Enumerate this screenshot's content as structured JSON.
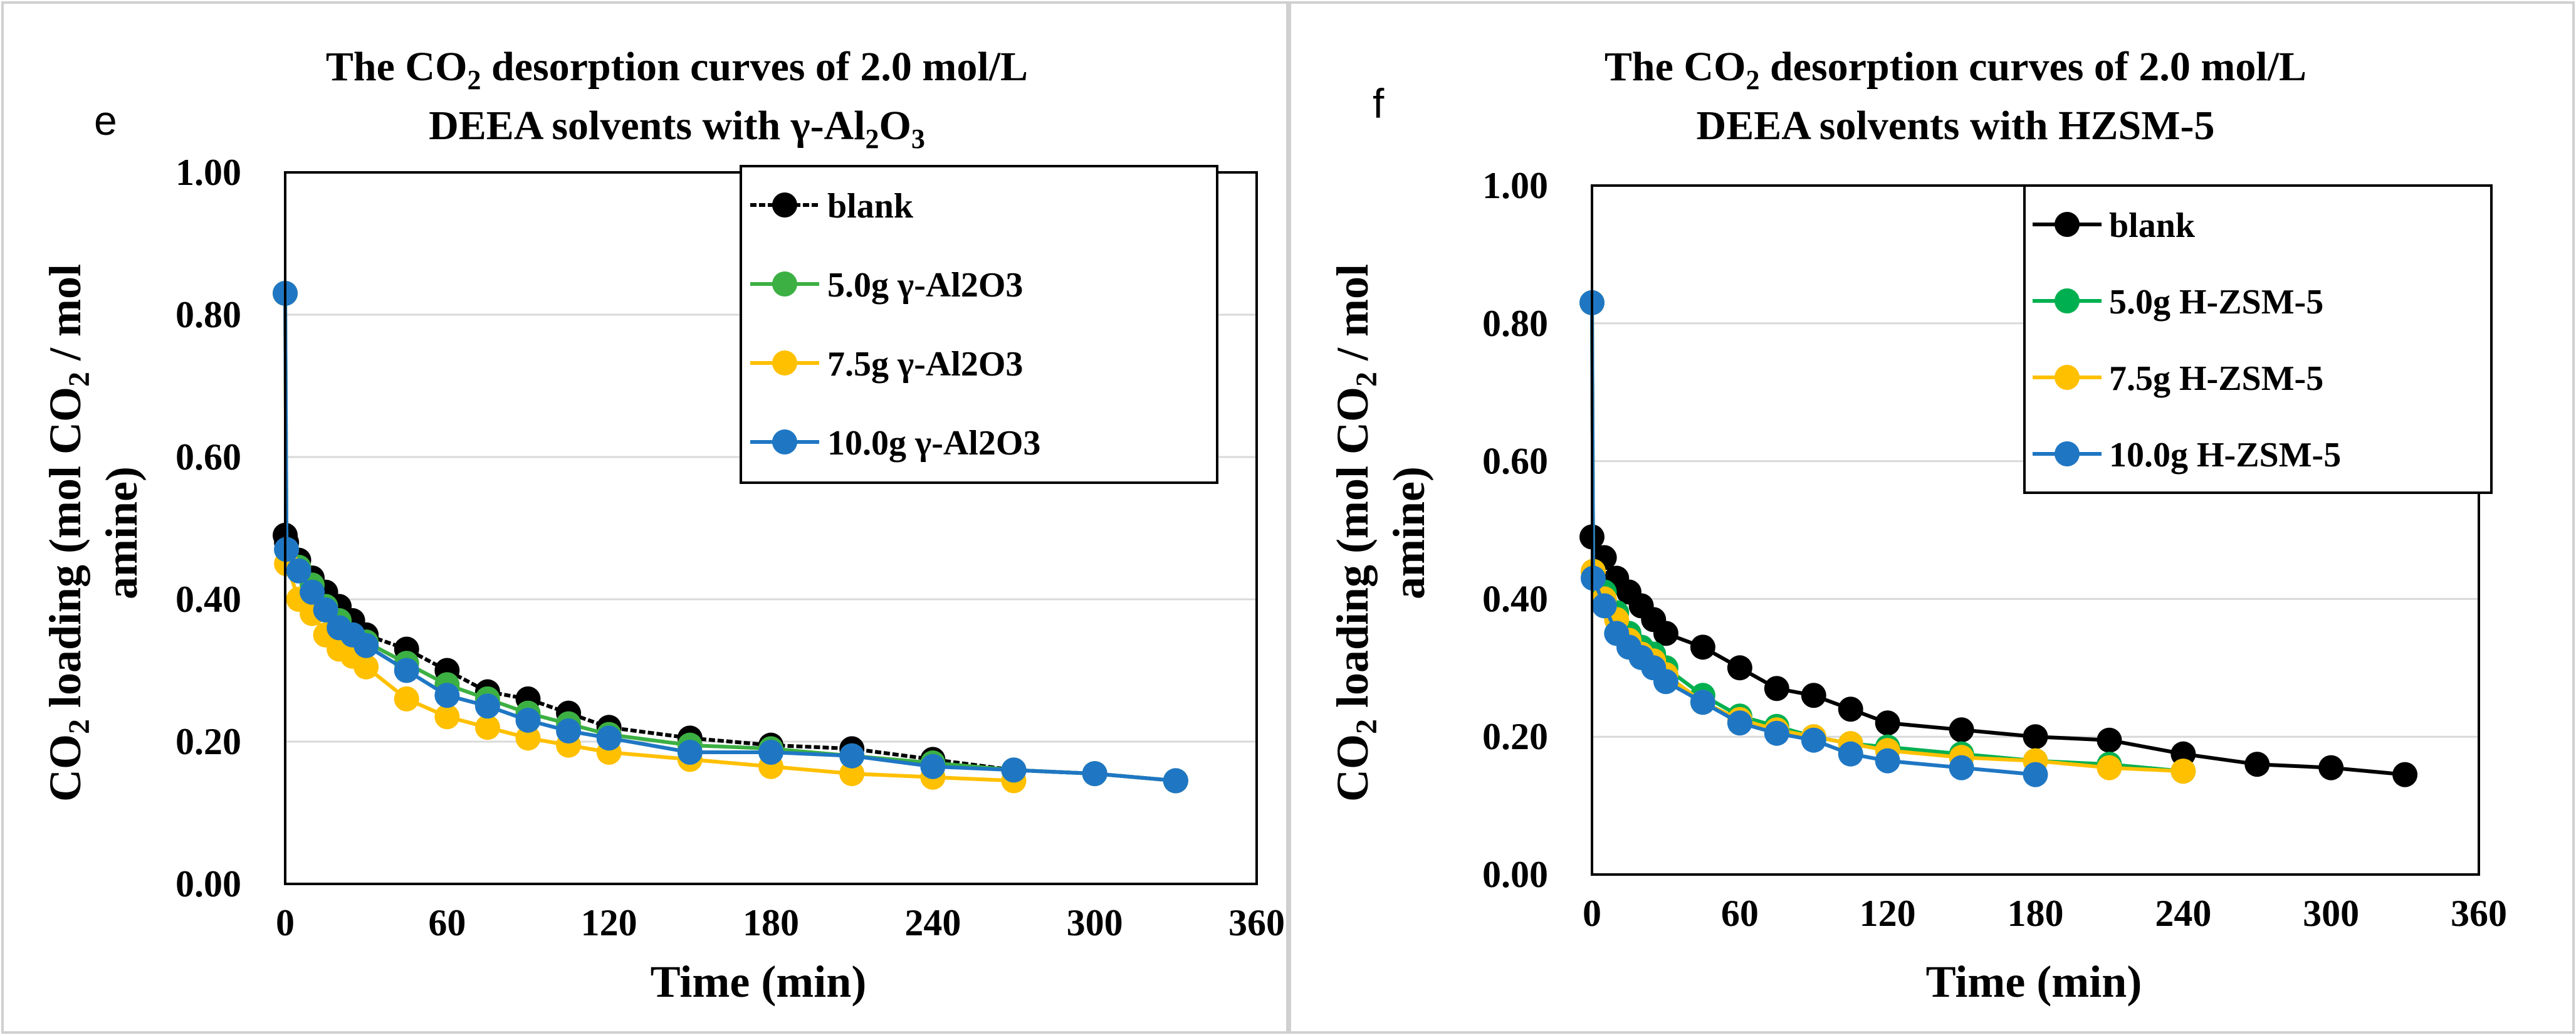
{
  "chart_data": [
    {
      "type": "line",
      "panel_label": "e",
      "title_line1_pre": "The CO",
      "title_line1_sub": "2",
      "title_line1_post": " desorption curves of  2.0 mol/L",
      "title_line2_pre": "DEEA solvents with γ-Al",
      "title_line2_sub1": "2",
      "title_line2_mid": "O",
      "title_line2_sub2": "3",
      "xlabel": "Time (min)",
      "ylabel_pre": "CO",
      "ylabel_sub1": "2",
      "ylabel_mid": " loading (mol CO",
      "ylabel_sub2": "2",
      "ylabel_post": " / mol",
      "ylabel_line2": "amine)",
      "xlim": [
        0,
        360
      ],
      "ylim": [
        0,
        1.0
      ],
      "xticks": [
        "0",
        "60",
        "120",
        "180",
        "240",
        "300",
        "360"
      ],
      "yticks": [
        "0.00",
        "0.20",
        "0.40",
        "0.60",
        "0.80",
        "1.00"
      ],
      "legend_position": "top-right",
      "grid": true,
      "series": [
        {
          "name": "blank",
          "color": "#000000",
          "dashed": true,
          "x": [
            0,
            0.5,
            5,
            10,
            15,
            20,
            25,
            30,
            45,
            60,
            75,
            90,
            105,
            120,
            150,
            180,
            210,
            240,
            270,
            300,
            330
          ],
          "y": [
            0.49,
            0.48,
            0.455,
            0.43,
            0.41,
            0.39,
            0.37,
            0.35,
            0.33,
            0.3,
            0.27,
            0.26,
            0.24,
            0.22,
            0.205,
            0.195,
            0.19,
            0.175,
            0.16,
            0.155,
            0.145
          ]
        },
        {
          "name": "5.0g γ-Al2O3",
          "color": "#3cb043",
          "dashed": false,
          "x": [
            0,
            0.5,
            5,
            10,
            15,
            20,
            25,
            30,
            45,
            60,
            75,
            90,
            105,
            120,
            150,
            180,
            210,
            240,
            270,
            300,
            330
          ],
          "y": [
            0.83,
            0.47,
            0.445,
            0.42,
            0.39,
            0.37,
            0.35,
            0.34,
            0.31,
            0.28,
            0.26,
            0.24,
            0.225,
            0.21,
            0.195,
            0.19,
            0.18,
            0.17,
            0.16,
            0.155,
            0.145
          ]
        },
        {
          "name": "7.5g γ-Al2O3",
          "color": "#ffc000",
          "dashed": false,
          "x": [
            0,
            0.5,
            5,
            10,
            15,
            20,
            25,
            30,
            45,
            60,
            75,
            90,
            105,
            120,
            150,
            180,
            210,
            240,
            270
          ],
          "y": [
            0.83,
            0.45,
            0.4,
            0.38,
            0.35,
            0.33,
            0.32,
            0.305,
            0.26,
            0.235,
            0.22,
            0.205,
            0.195,
            0.185,
            0.175,
            0.165,
            0.155,
            0.15,
            0.145
          ]
        },
        {
          "name": "10.0g γ-Al2O3",
          "color": "#1f77c4",
          "dashed": false,
          "x": [
            0,
            0.5,
            5,
            10,
            15,
            20,
            25,
            30,
            45,
            60,
            75,
            90,
            105,
            120,
            150,
            180,
            210,
            240,
            270,
            300,
            330
          ],
          "y": [
            0.83,
            0.47,
            0.44,
            0.41,
            0.385,
            0.36,
            0.35,
            0.335,
            0.3,
            0.265,
            0.25,
            0.23,
            0.215,
            0.205,
            0.185,
            0.185,
            0.18,
            0.165,
            0.16,
            0.155,
            0.145
          ]
        }
      ]
    },
    {
      "type": "line",
      "panel_label": "f",
      "title_line1_pre": "The CO",
      "title_line1_sub": "2",
      "title_line1_post": " desorption curves of  2.0 mol/L",
      "title_line2": "DEEA solvents with HZSM-5",
      "xlabel": "Time (min)",
      "ylabel_pre": "CO",
      "ylabel_sub1": "2",
      "ylabel_mid": " loading (mol CO",
      "ylabel_sub2": "2",
      "ylabel_post": " / mol",
      "ylabel_line2": "amine)",
      "xlim": [
        0,
        360
      ],
      "ylim": [
        0,
        1.0
      ],
      "xticks": [
        "0",
        "60",
        "120",
        "180",
        "240",
        "300",
        "360"
      ],
      "yticks": [
        "0.00",
        "0.20",
        "0.40",
        "0.60",
        "0.80",
        "1.00"
      ],
      "legend_position": "top-right",
      "grid": true,
      "series": [
        {
          "name": "blank",
          "color": "#000000",
          "dashed": false,
          "x": [
            0,
            5,
            10,
            15,
            20,
            25,
            30,
            45,
            60,
            75,
            90,
            105,
            120,
            150,
            180,
            210,
            240,
            270,
            300,
            330
          ],
          "y": [
            0.49,
            0.46,
            0.43,
            0.41,
            0.39,
            0.37,
            0.35,
            0.33,
            0.3,
            0.27,
            0.26,
            0.24,
            0.22,
            0.21,
            0.2,
            0.195,
            0.175,
            0.16,
            0.155,
            0.145
          ]
        },
        {
          "name": "5.0g H-ZSM-5",
          "color": "#00b050",
          "dashed": false,
          "x": [
            0,
            0.5,
            5,
            10,
            15,
            20,
            25,
            30,
            45,
            60,
            75,
            90,
            105,
            120,
            150,
            180,
            210,
            240
          ],
          "y": [
            0.83,
            0.44,
            0.41,
            0.38,
            0.35,
            0.33,
            0.32,
            0.3,
            0.26,
            0.23,
            0.215,
            0.2,
            0.19,
            0.185,
            0.175,
            0.165,
            0.16,
            0.15
          ]
        },
        {
          "name": "7.5g H-ZSM-5",
          "color": "#ffc000",
          "dashed": false,
          "x": [
            0,
            0.5,
            5,
            10,
            15,
            20,
            25,
            30,
            45,
            60,
            75,
            90,
            105,
            120,
            150,
            180,
            210,
            240
          ],
          "y": [
            0.83,
            0.44,
            0.4,
            0.37,
            0.34,
            0.32,
            0.31,
            0.29,
            0.25,
            0.225,
            0.21,
            0.2,
            0.19,
            0.18,
            0.17,
            0.165,
            0.155,
            0.15
          ]
        },
        {
          "name": "10.0g H-ZSM-5",
          "color": "#1f77c4",
          "dashed": false,
          "x": [
            0,
            0.5,
            5,
            10,
            15,
            20,
            25,
            30,
            45,
            60,
            75,
            90,
            105,
            120,
            150,
            180
          ],
          "y": [
            0.83,
            0.43,
            0.39,
            0.35,
            0.33,
            0.315,
            0.3,
            0.28,
            0.25,
            0.22,
            0.205,
            0.195,
            0.175,
            0.165,
            0.155,
            0.145
          ]
        }
      ]
    }
  ]
}
